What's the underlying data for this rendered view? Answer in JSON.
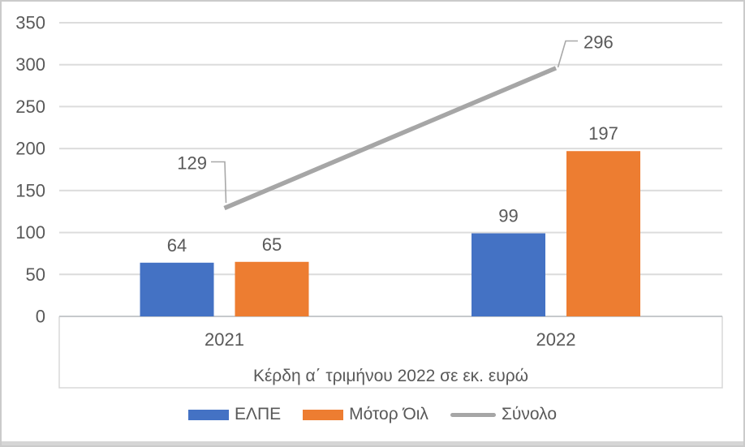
{
  "chart_data": {
    "type": "bar",
    "categories": [
      "2021",
      "2022"
    ],
    "series": [
      {
        "name": "ΕΛΠΕ",
        "kind": "bar",
        "color": "#4472C4",
        "values": [
          64,
          99
        ]
      },
      {
        "name": "Μότορ Όιλ",
        "kind": "bar",
        "color": "#ED7D31",
        "values": [
          65,
          197
        ]
      },
      {
        "name": "Σύνολο",
        "kind": "line",
        "color": "#A6A6A6",
        "values": [
          129,
          296
        ]
      }
    ],
    "axis_title": "Κέρδη α΄ τριμήνου 2022 σε εκ. ευρώ",
    "xlabel": "",
    "ylabel": "",
    "y_ticks": [
      0,
      50,
      100,
      150,
      200,
      250,
      300,
      350
    ],
    "ylim": [
      0,
      350
    ],
    "grid": true,
    "data_labels": true,
    "legend_position": "bottom"
  },
  "colors": {
    "text": "#595959",
    "gridline": "#DCDCDC",
    "axis_line": "#C6C9CC",
    "axis_box": "#D8D8D8",
    "leader_line": "#A8A8A8",
    "background": "#FFFFFF",
    "frame_border": "#CBCBCB",
    "bottom_strip": "#D6D6D6"
  }
}
